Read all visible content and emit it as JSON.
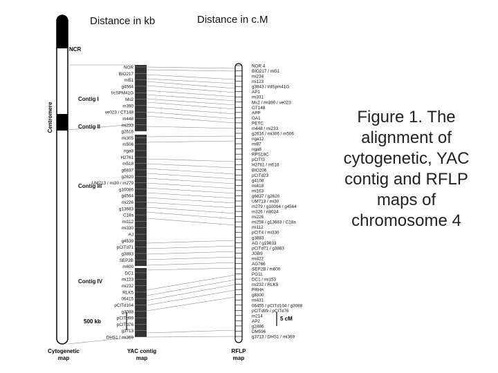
{
  "headers": {
    "kb": "Distance in kb",
    "cm": "Distance in c.M"
  },
  "caption": "Figure 1. The alignment of cytogenetic, YAC contig and RFLP maps of chromosome 4",
  "cyto": {
    "ncr": "NCR",
    "centromere": "Centromere",
    "label": [
      "Cytogenetic",
      "map"
    ]
  },
  "yac": {
    "label": [
      "YAC contig",
      "map"
    ],
    "scale": "500 kb",
    "contigs": [
      {
        "name": "Contig I"
      },
      {
        "name": "Contig II"
      },
      {
        "name": "Contig III"
      },
      {
        "name": "Contig IV"
      }
    ],
    "markers": [
      "NOR",
      "BIO217",
      "mi51",
      "g4564",
      "l/cSPM41G",
      "Ms2",
      "m390",
      "ve023 / CT148",
      "m448",
      "mi233",
      "g2616",
      "mi305",
      "m506",
      "nga8",
      "H2761",
      "m518",
      "g6837",
      "g2620",
      "UM713 / mi30 / m279",
      "g10086",
      "g4564",
      "mi226",
      "g13683",
      "C18a",
      "mi112",
      "mi330",
      "AJ",
      "g4539",
      "pCITd71",
      "g3883",
      "SEP2B",
      "m600",
      "DC1",
      "mi123",
      "mi232",
      "RLK5",
      "06415",
      "pCITd104",
      "g3088",
      "pCITd99",
      "pCITd76",
      "g3713",
      "DHS1 / mi369"
    ]
  },
  "rflp": {
    "label": [
      "RFLP",
      "map"
    ],
    "scale": "5 cM",
    "markers": [
      "NOR 4",
      "BIO217 / mi51",
      "mi234",
      "mi123",
      "g3843 / l/dSpm41G",
      "AP1",
      "mi331",
      "Ms2 / mi390 / ve023",
      "GT148",
      "APP",
      "GA1",
      "PETC",
      "m448 / mi233",
      "g2616 / mi306 / m506",
      "nga12",
      "mi87",
      "nga8",
      "RPS18C",
      "pCITf3",
      "H2761 / m518",
      "BIO206",
      "pCITd23",
      "g4108",
      "mi418",
      "mi163",
      "g6837 / g2620",
      "UM713 / mi30",
      "m279 / g10094 / g4564",
      "m326 / ri8024",
      "mi226",
      "mi258 / g13683 / C18a",
      "mi112",
      "pCIT4 / mi330",
      "g3883",
      "AG / g19833",
      "pCITd71 / g3883",
      "JGB9",
      "mi422",
      "AG766",
      "SEP2B / m600",
      "PG11",
      "DC1 / mi153",
      "mi232 / RLK5",
      "PRHA",
      "g8300",
      "mi431",
      "06455 / pCITd104 / g3088",
      "pCITd99 / pCITd76",
      "m214",
      "AP2",
      "g2486",
      "DM596",
      "g3713 / DHS1 / mi369"
    ]
  },
  "links": [
    [
      97,
      99
    ],
    [
      101,
      103
    ],
    [
      108,
      115
    ],
    [
      114,
      121
    ],
    [
      118,
      128
    ],
    [
      124,
      134
    ],
    [
      131,
      140
    ],
    [
      137,
      146
    ],
    [
      143,
      152
    ],
    [
      148,
      158
    ],
    [
      155,
      165
    ],
    [
      162,
      172
    ],
    [
      168,
      178
    ],
    [
      183,
      186
    ],
    [
      198,
      197
    ],
    [
      206,
      204
    ],
    [
      230,
      234
    ],
    [
      237,
      243
    ],
    [
      244,
      252
    ],
    [
      251,
      259
    ],
    [
      258,
      266
    ],
    [
      265,
      273
    ],
    [
      272,
      280
    ],
    [
      279,
      287
    ],
    [
      286,
      294
    ],
    [
      293,
      301
    ],
    [
      300,
      309
    ],
    [
      307,
      317
    ],
    [
      316,
      326
    ],
    [
      352,
      348
    ],
    [
      360,
      356
    ],
    [
      368,
      364
    ],
    [
      376,
      372
    ],
    [
      384,
      380
    ],
    [
      391,
      388
    ],
    [
      420,
      398
    ],
    [
      428,
      405
    ],
    [
      435,
      412
    ],
    [
      442,
      420
    ],
    [
      450,
      430
    ],
    [
      482,
      478
    ],
    [
      488,
      487
    ]
  ]
}
